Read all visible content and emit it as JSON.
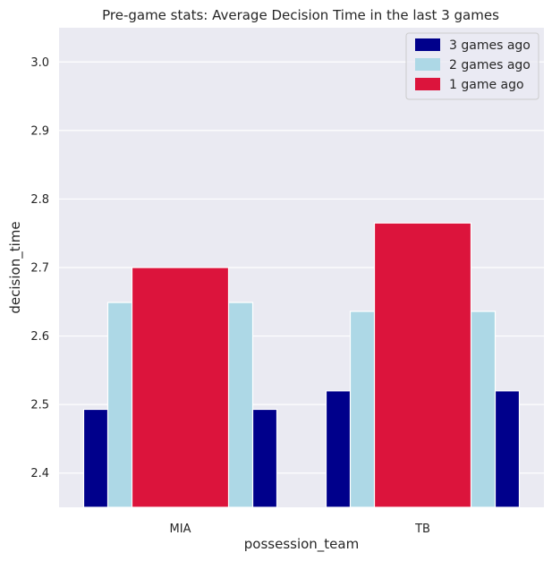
{
  "chart_data": {
    "type": "bar",
    "title": "Pre-game stats: Average Decision Time in the last 3 games",
    "xlabel": "possession_team",
    "ylabel": "decision_time",
    "categories": [
      "MIA",
      "TB"
    ],
    "ylim": [
      2.35,
      3.05
    ],
    "yticks": [
      "2.4",
      "2.5",
      "2.6",
      "2.7",
      "2.8",
      "2.9",
      "3.0"
    ],
    "grid": true,
    "legend_position": "top-right",
    "bar_layers": [
      {
        "name": "3 games ago",
        "color": "#00008B",
        "values": [
          2.493,
          2.52
        ]
      },
      {
        "name": "2 games ago",
        "color": "#ADD8E6",
        "values": [
          2.649,
          2.636
        ]
      },
      {
        "name": "1 game ago",
        "color": "#DC143C",
        "values": [
          2.7,
          2.765
        ]
      }
    ],
    "background_color": "#EAEAF2"
  }
}
